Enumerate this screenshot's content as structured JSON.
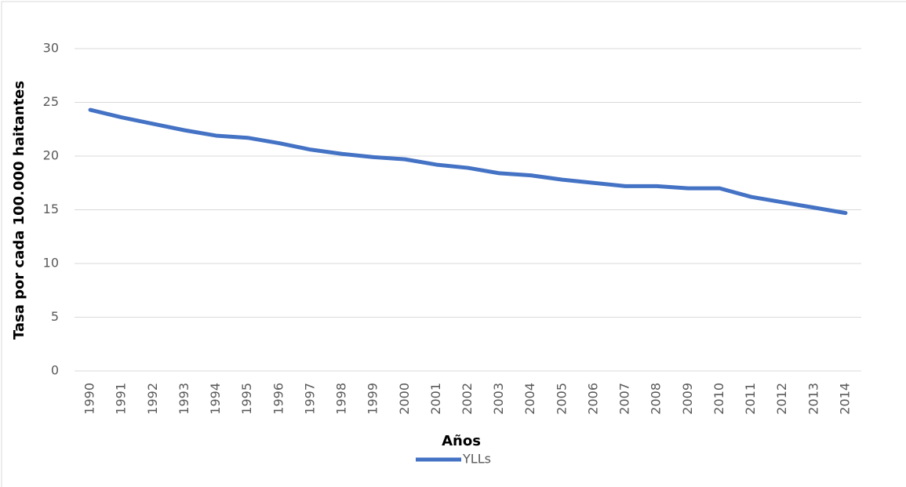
{
  "chart_data": {
    "type": "line",
    "x_label": "Años",
    "y_label": "Tasa por cada 100.000 haitantes",
    "categories": [
      "1990",
      "1991",
      "1992",
      "1993",
      "1994",
      "1995",
      "1996",
      "1997",
      "1998",
      "1999",
      "2000",
      "2001",
      "2002",
      "2003",
      "2004",
      "2005",
      "2006",
      "2007",
      "2008",
      "2009",
      "2010",
      "2011",
      "2012",
      "2013",
      "2014"
    ],
    "series": [
      {
        "name": "YLLs",
        "color": "#4472c4",
        "values": [
          24.3,
          23.6,
          23.0,
          22.4,
          21.9,
          21.7,
          21.2,
          20.6,
          20.2,
          19.9,
          19.7,
          19.2,
          18.9,
          18.4,
          18.2,
          17.8,
          17.5,
          17.2,
          17.2,
          17.0,
          17.0,
          16.2,
          15.7,
          15.2,
          14.7
        ]
      }
    ],
    "ylim": [
      0,
      30
    ],
    "yticks": [
      0,
      5,
      10,
      15,
      20,
      25,
      30
    ],
    "grid": true,
    "legend": "bottom"
  }
}
